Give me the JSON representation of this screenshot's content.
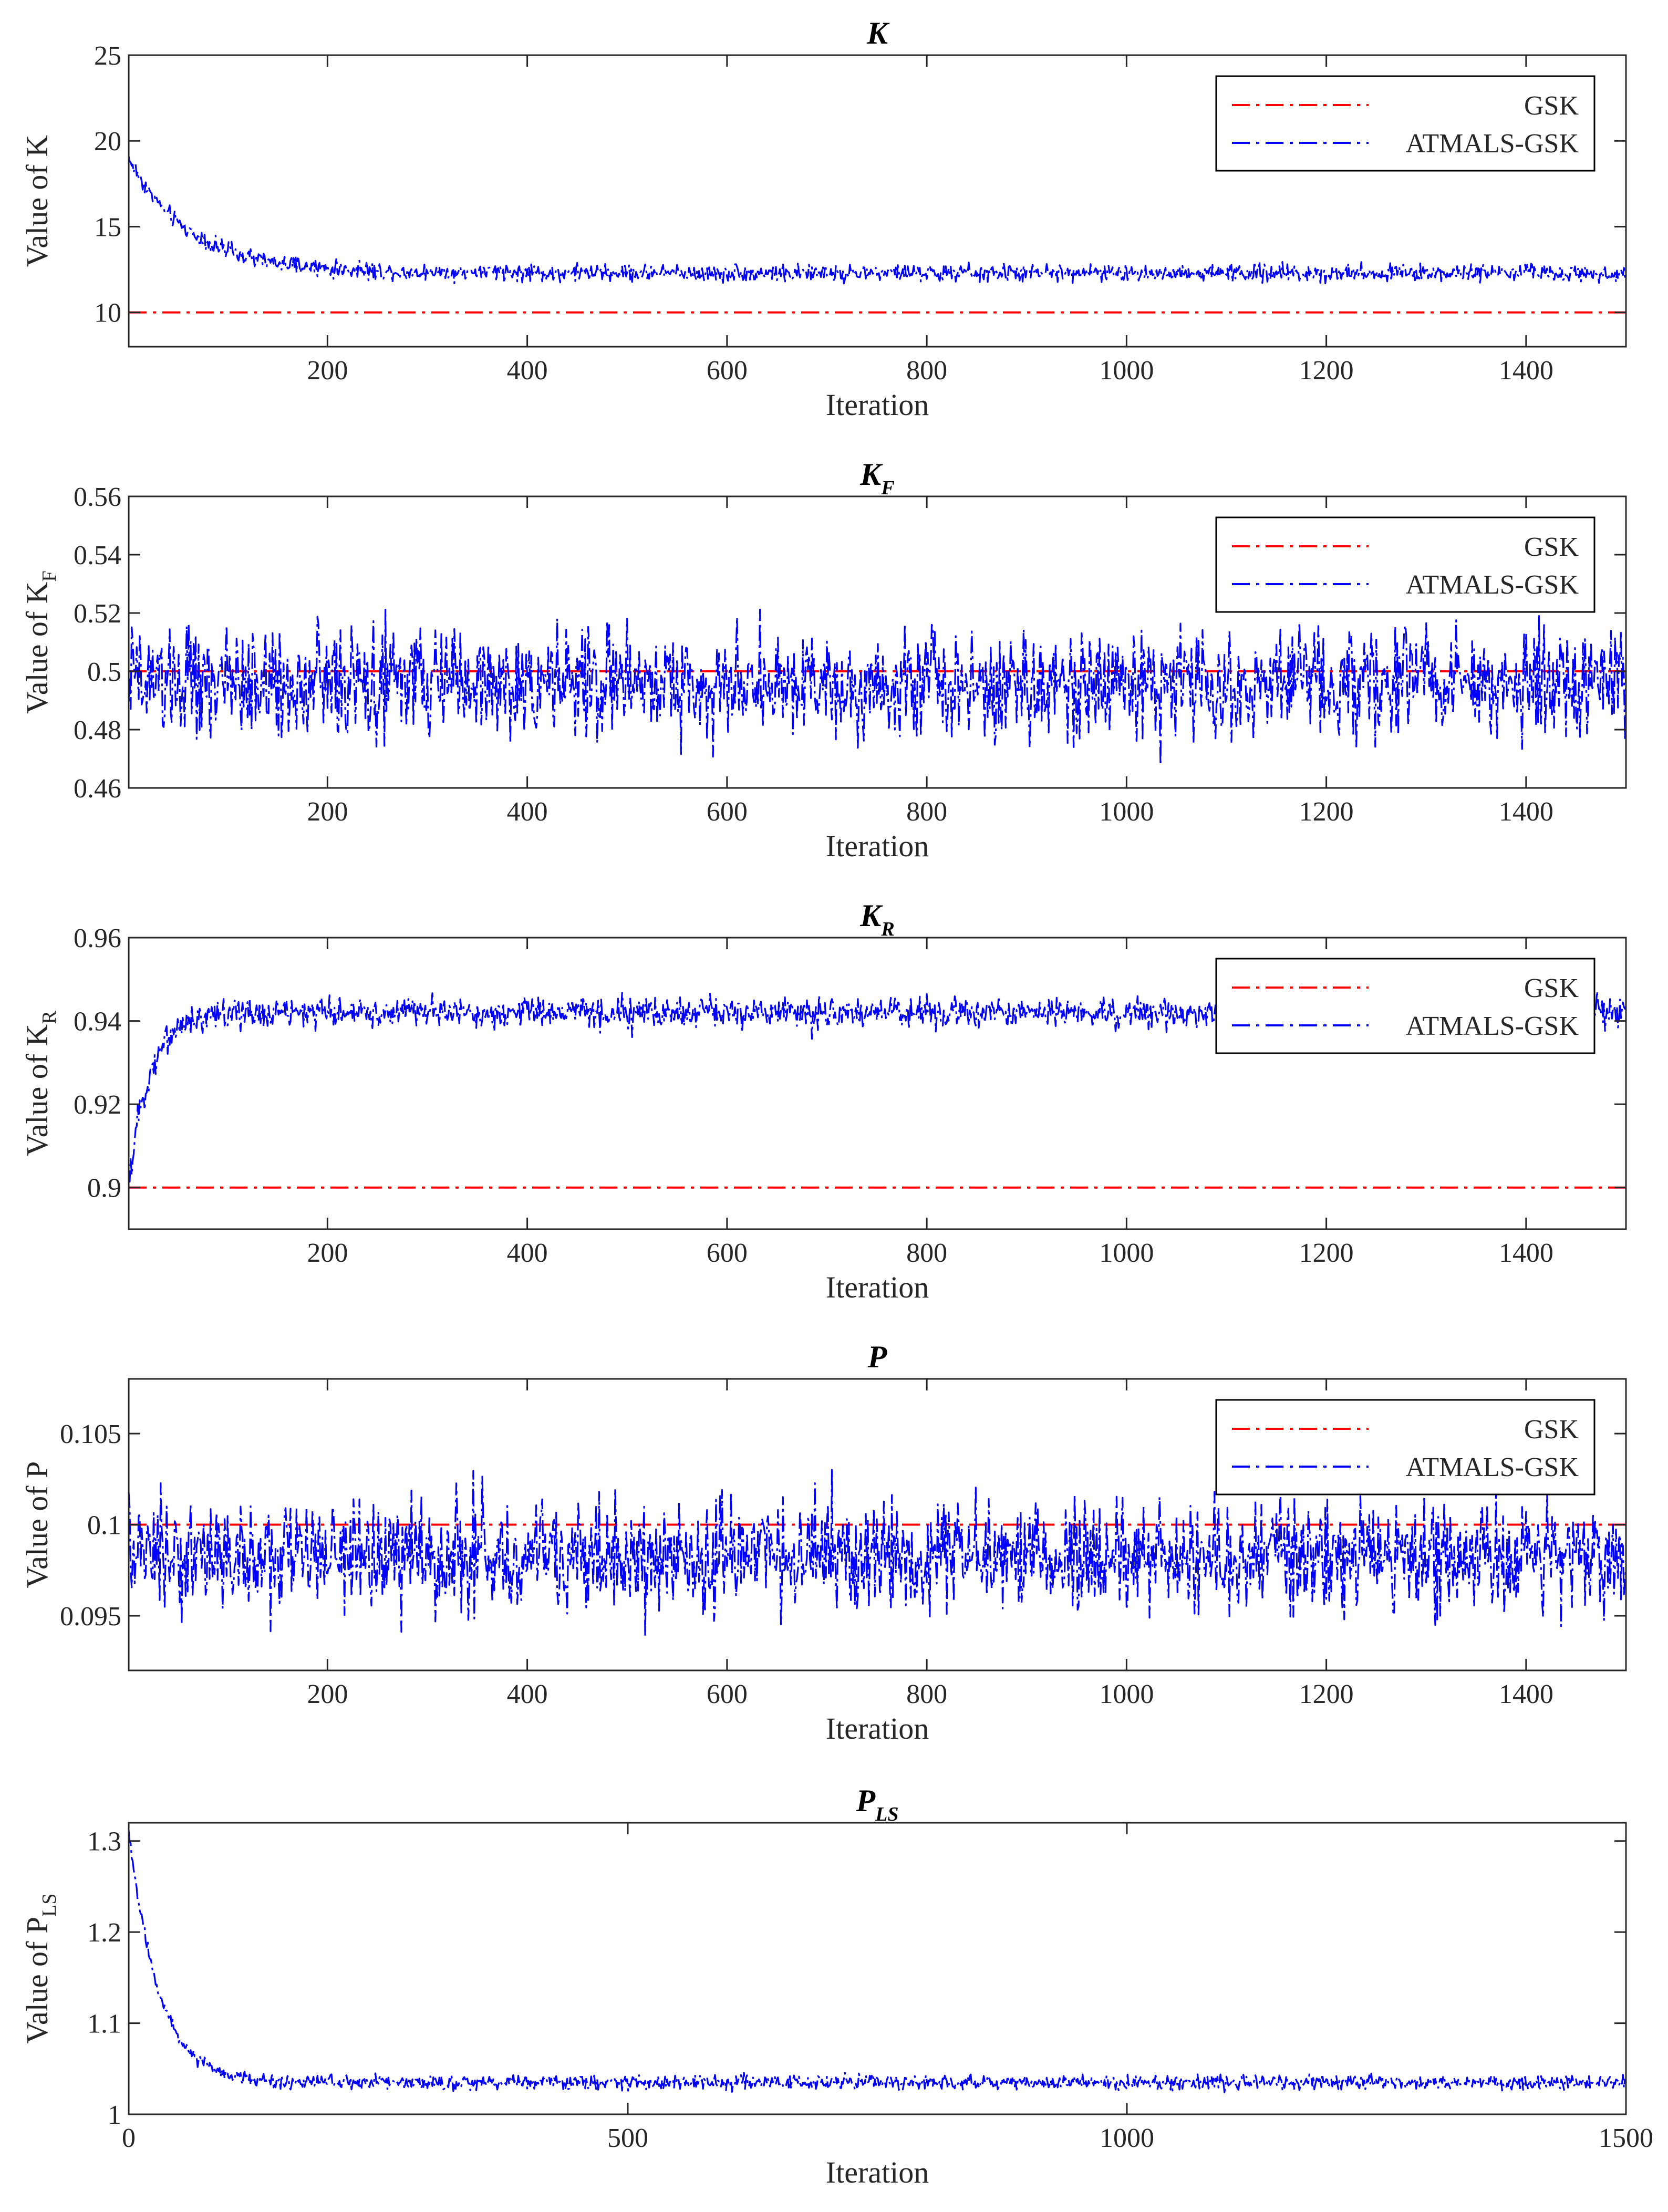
{
  "colors": {
    "gsk": "#ff0000",
    "atmals": "#0000ff",
    "axis": "#262626"
  },
  "legend": {
    "gsk": "GSK",
    "atmals": "ATMALS-GSK"
  },
  "chart_data": [
    {
      "type": "line",
      "id": "K",
      "title": "K",
      "title_sub": "",
      "ylabel": "Value of K",
      "ylabel_sub": "",
      "xlabel": "Iteration",
      "xlim": [
        1,
        1500
      ],
      "ylim": [
        8,
        25
      ],
      "xticks": [
        200,
        400,
        600,
        800,
        1000,
        1200,
        1400
      ],
      "yticks": [
        10,
        15,
        20,
        25
      ],
      "yticklabels": [
        "10",
        "15",
        "20",
        "25"
      ],
      "legend": "top-right",
      "series": [
        {
          "name": "GSK",
          "constant": 10
        },
        {
          "name": "ATMALS-GSK",
          "start": 19,
          "settle": 12.3,
          "tau": 60,
          "noise": 0.25,
          "spike": 0.2
        }
      ]
    },
    {
      "type": "line",
      "id": "KF",
      "title": "K",
      "title_sub": "F",
      "ylabel": "Value of K",
      "ylabel_sub": "F",
      "xlabel": "Iteration",
      "xlim": [
        1,
        1500
      ],
      "ylim": [
        0.46,
        0.56
      ],
      "xticks": [
        200,
        400,
        600,
        800,
        1000,
        1200,
        1400
      ],
      "yticks": [
        0.46,
        0.48,
        0.5,
        0.52,
        0.54,
        0.56
      ],
      "yticklabels": [
        "0.46",
        "0.48",
        "0.5",
        "0.52",
        "0.54",
        "0.56"
      ],
      "legend": "top-right",
      "series": [
        {
          "name": "GSK",
          "constant": 0.5
        },
        {
          "name": "ATMALS-GSK",
          "start": 0.5,
          "settle": 0.496,
          "tau": 1,
          "noise": 0.009,
          "spike": 0.012
        }
      ]
    },
    {
      "type": "line",
      "id": "KR",
      "title": "K",
      "title_sub": "R",
      "ylabel": "Value of K",
      "ylabel_sub": "R",
      "xlabel": "Iteration",
      "xlim": [
        1,
        1500
      ],
      "ylim": [
        0.89,
        0.96
      ],
      "xticks": [
        200,
        400,
        600,
        800,
        1000,
        1200,
        1400
      ],
      "yticks": [
        0.9,
        0.92,
        0.94,
        0.96
      ],
      "yticklabels": [
        "0.9",
        "0.92",
        "0.94",
        "0.96"
      ],
      "legend": "top-right",
      "series": [
        {
          "name": "GSK",
          "constant": 0.9
        },
        {
          "name": "ATMALS-GSK",
          "start": 0.9,
          "settle": 0.942,
          "tau": 20,
          "noise": 0.0018,
          "spike": 0.003
        }
      ]
    },
    {
      "type": "line",
      "id": "P",
      "title": "P",
      "title_sub": "",
      "ylabel": "Value of P",
      "ylabel_sub": "",
      "xlabel": "Iteration",
      "xlim": [
        1,
        1500
      ],
      "ylim": [
        0.092,
        0.108
      ],
      "xticks": [
        200,
        400,
        600,
        800,
        1000,
        1200,
        1400
      ],
      "yticks": [
        0.095,
        0.1,
        0.105
      ],
      "yticklabels": [
        "0.095",
        "0.1",
        "0.105"
      ],
      "legend": "top-right",
      "series": [
        {
          "name": "GSK",
          "constant": 0.1
        },
        {
          "name": "ATMALS-GSK",
          "start": 0.099,
          "settle": 0.0982,
          "tau": 1,
          "noise": 0.0015,
          "spike": 0.0022
        }
      ]
    },
    {
      "type": "line",
      "id": "PLS",
      "title": "P",
      "title_sub": "LS",
      "ylabel": "Value of P",
      "ylabel_sub": "LS",
      "xlabel": "Iteration",
      "xlim": [
        0,
        1500
      ],
      "ylim": [
        1.0,
        1.32
      ],
      "xticks": [
        0,
        500,
        1000,
        1500
      ],
      "yticks": [
        1,
        1.1,
        1.2,
        1.3
      ],
      "yticklabels": [
        "1",
        "1.1",
        "1.2",
        "1.3"
      ],
      "legend": "none",
      "series": [
        {
          "name": "ATMALS-GSK",
          "start": 1.31,
          "settle": 1.035,
          "tau": 30,
          "noise": 0.004,
          "spike": 0.006
        }
      ]
    }
  ]
}
